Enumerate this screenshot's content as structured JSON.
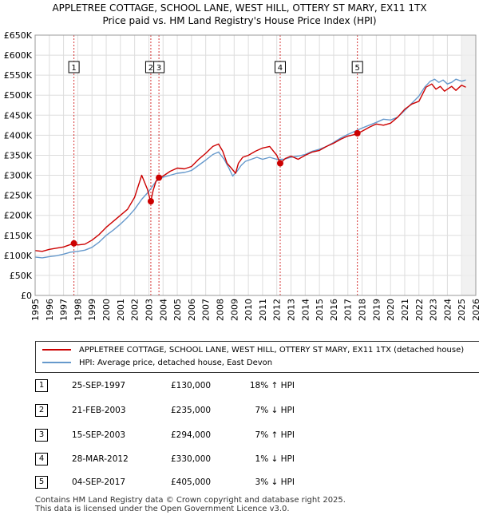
{
  "chart_data": {
    "type": "line",
    "title": "APPLETREE COTTAGE, SCHOOL LANE, WEST HILL, OTTERY ST MARY, EX11 1TX",
    "subtitle": "Price paid vs. HM Land Registry's House Price Index (HPI)",
    "xlabel": "",
    "ylabel": "",
    "xlim": [
      1995,
      2026
    ],
    "ylim": [
      0,
      650000
    ],
    "y_ticks": [
      0,
      50000,
      100000,
      150000,
      200000,
      250000,
      300000,
      350000,
      400000,
      450000,
      500000,
      550000,
      600000,
      650000
    ],
    "y_tick_labels": [
      "£0",
      "£50K",
      "£100K",
      "£150K",
      "£200K",
      "£250K",
      "£300K",
      "£350K",
      "£400K",
      "£450K",
      "£500K",
      "£550K",
      "£600K",
      "£650K"
    ],
    "x_ticks": [
      1995,
      1996,
      1997,
      1998,
      1999,
      2000,
      2001,
      2002,
      2003,
      2004,
      2005,
      2006,
      2007,
      2008,
      2009,
      2010,
      2011,
      2012,
      2013,
      2014,
      2015,
      2016,
      2017,
      2018,
      2019,
      2020,
      2021,
      2022,
      2023,
      2024,
      2025,
      2026
    ],
    "x_tick_labels": [
      "1995",
      "1996",
      "1997",
      "1998",
      "1999",
      "2000",
      "2001",
      "2002",
      "2003",
      "2004",
      "2005",
      "2006",
      "2007",
      "2008",
      "2009",
      "2010",
      "2011",
      "2012",
      "2013",
      "2014",
      "2015",
      "2016",
      "2017",
      "2018",
      "2019",
      "2020",
      "2021",
      "2022",
      "2023",
      "2024",
      "2025",
      "2026"
    ],
    "grid": true,
    "future_shade_from": 2025.0,
    "series": [
      {
        "name": "APPLETREE COTTAGE, SCHOOL LANE, WEST HILL, OTTERY ST MARY, EX11 1TX (detached house)",
        "color": "#cc0000",
        "x": [
          1995.0,
          1995.5,
          1996.0,
          1996.5,
          1997.0,
          1997.4,
          1997.73,
          1998.0,
          1998.5,
          1999.0,
          1999.5,
          2000.0,
          2000.5,
          2001.0,
          2001.5,
          2002.0,
          2002.5,
          2002.9,
          2003.1,
          2003.14,
          2003.3,
          2003.5,
          2003.7,
          2004.0,
          2004.5,
          2005.0,
          2005.5,
          2006.0,
          2006.5,
          2007.0,
          2007.5,
          2007.9,
          2008.2,
          2008.5,
          2008.8,
          2009.1,
          2009.3,
          2009.6,
          2010.0,
          2010.5,
          2011.0,
          2011.5,
          2012.0,
          2012.24,
          2012.6,
          2013.0,
          2013.5,
          2014.0,
          2014.5,
          2015.0,
          2015.5,
          2016.0,
          2016.5,
          2017.0,
          2017.5,
          2017.67,
          2018.0,
          2018.5,
          2019.0,
          2019.5,
          2020.0,
          2020.5,
          2021.0,
          2021.5,
          2022.0,
          2022.5,
          2022.9,
          2023.2,
          2023.5,
          2023.8,
          2024.0,
          2024.3,
          2024.6,
          2025.0,
          2025.3
        ],
        "values": [
          112000,
          110000,
          115000,
          118000,
          121000,
          126000,
          130000,
          126000,
          128000,
          138000,
          152000,
          170000,
          185000,
          200000,
          215000,
          245000,
          300000,
          265000,
          238000,
          235000,
          262000,
          285000,
          294000,
          298000,
          310000,
          318000,
          316000,
          322000,
          340000,
          355000,
          372000,
          378000,
          360000,
          330000,
          318000,
          305000,
          330000,
          345000,
          350000,
          360000,
          368000,
          372000,
          350000,
          330000,
          342000,
          348000,
          340000,
          350000,
          358000,
          362000,
          372000,
          380000,
          390000,
          398000,
          402000,
          405000,
          410000,
          420000,
          428000,
          425000,
          430000,
          445000,
          465000,
          478000,
          485000,
          520000,
          528000,
          515000,
          522000,
          510000,
          515000,
          522000,
          512000,
          525000,
          520000
        ]
      },
      {
        "name": "HPI: Average price, detached house, East Devon",
        "color": "#6699cc",
        "x": [
          1995.0,
          1995.5,
          1996.0,
          1996.5,
          1997.0,
          1997.5,
          1998.0,
          1998.5,
          1999.0,
          1999.5,
          2000.0,
          2000.5,
          2001.0,
          2001.5,
          2002.0,
          2002.5,
          2003.0,
          2003.5,
          2004.0,
          2004.5,
          2005.0,
          2005.5,
          2006.0,
          2006.5,
          2007.0,
          2007.5,
          2007.9,
          2008.3,
          2008.6,
          2008.9,
          2009.2,
          2009.5,
          2009.8,
          2010.2,
          2010.6,
          2011.0,
          2011.5,
          2012.0,
          2012.5,
          2013.0,
          2013.5,
          2014.0,
          2014.5,
          2015.0,
          2015.5,
          2016.0,
          2016.5,
          2017.0,
          2017.5,
          2018.0,
          2018.5,
          2019.0,
          2019.5,
          2020.0,
          2020.5,
          2021.0,
          2021.5,
          2022.0,
          2022.4,
          2022.8,
          2023.1,
          2023.4,
          2023.7,
          2024.0,
          2024.3,
          2024.6,
          2025.0,
          2025.3
        ],
        "values": [
          96000,
          94000,
          97000,
          99000,
          103000,
          108000,
          110000,
          113000,
          120000,
          133000,
          150000,
          163000,
          178000,
          195000,
          215000,
          240000,
          260000,
          285000,
          295000,
          300000,
          305000,
          307000,
          312000,
          325000,
          338000,
          352000,
          358000,
          340000,
          320000,
          298000,
          310000,
          325000,
          335000,
          340000,
          345000,
          340000,
          345000,
          340000,
          340000,
          345000,
          348000,
          352000,
          360000,
          365000,
          372000,
          382000,
          393000,
          402000,
          410000,
          418000,
          425000,
          432000,
          440000,
          438000,
          445000,
          462000,
          480000,
          498000,
          520000,
          535000,
          540000,
          532000,
          538000,
          528000,
          532000,
          540000,
          535000,
          538000
        ]
      }
    ],
    "sales": [
      {
        "id": "1",
        "x": 1997.73,
        "value": 130000,
        "date": "25-SEP-1997",
        "price": "£130,000",
        "hpi": "18% ↑ HPI"
      },
      {
        "id": "2",
        "x": 2003.14,
        "value": 235000,
        "date": "21-FEB-2003",
        "price": "£235,000",
        "hpi": "7% ↓ HPI"
      },
      {
        "id": "3",
        "x": 2003.71,
        "value": 294000,
        "date": "15-SEP-2003",
        "price": "£294,000",
        "hpi": "7% ↑ HPI"
      },
      {
        "id": "4",
        "x": 2012.24,
        "value": 330000,
        "date": "28-MAR-2012",
        "price": "£330,000",
        "hpi": "1% ↓ HPI"
      },
      {
        "id": "5",
        "x": 2017.67,
        "value": 405000,
        "date": "04-SEP-2017",
        "price": "£405,000",
        "hpi": "3% ↓ HPI"
      }
    ]
  },
  "legend": {
    "property_label": "APPLETREE COTTAGE, SCHOOL LANE, WEST HILL, OTTERY ST MARY, EX11 1TX (detached house)",
    "hpi_label": "HPI: Average price, detached house, East Devon"
  },
  "colors": {
    "property": "#cc0000",
    "hpi": "#6699cc",
    "grid": "#dddddd",
    "plot_bg": "#ffffff",
    "future_shade": "#eeeeee"
  },
  "footer": {
    "line1": "Contains HM Land Registry data © Crown copyright and database right 2025.",
    "line2": "This data is licensed under the Open Government Licence v3.0."
  }
}
